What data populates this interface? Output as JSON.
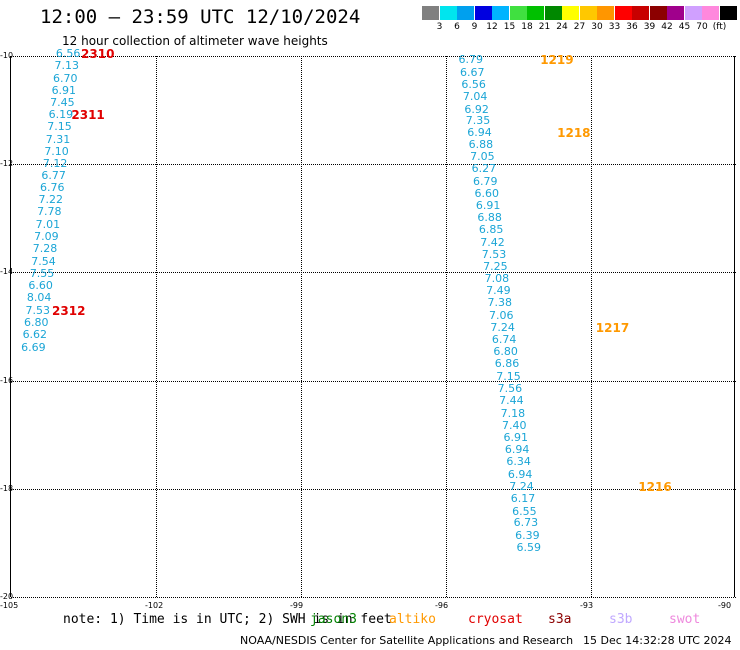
{
  "header": {
    "title": "12:00 — 23:59 UTC 12/10/2024",
    "subtitle": "12 hour collection of altimeter wave heights"
  },
  "colorbar": {
    "swatches": [
      "#808080",
      "#00e5ee",
      "#00a0ee",
      "#0000e0",
      "#00b4ff",
      "#40e040",
      "#00c000",
      "#008800",
      "#ffff00",
      "#ffc800",
      "#ff9600",
      "#ff0000",
      "#c80000",
      "#8c0000",
      "#a0008c",
      "#d0a0ff",
      "#ff88dd",
      "#000000"
    ],
    "labels": [
      "3",
      "6",
      "9",
      "12",
      "15",
      "18",
      "21",
      "24",
      "27",
      "30",
      "33",
      "36",
      "39",
      "42",
      "45",
      "70",
      "(ft)"
    ]
  },
  "axes": {
    "lat_labels": [
      "-10",
      "-12",
      "-14",
      "-16",
      "-18",
      "-20"
    ],
    "lon_labels": [
      "-105",
      "-102",
      "-99",
      "-96",
      "-93",
      "-90"
    ]
  },
  "map_data": {
    "value_color": "#1ba5d6",
    "passes": [
      {
        "id": "2310",
        "mission": "cryosat",
        "color": "#e00000",
        "label_lat": -9.97,
        "label_lon": -103.53,
        "values": [
          {
            "v": "6.56",
            "lon": -104.05,
            "lat": -9.97
          },
          {
            "v": "7.13",
            "lon": -104.08,
            "lat": -10.19
          },
          {
            "v": "6.70",
            "lon": -104.11,
            "lat": -10.42
          },
          {
            "v": "6.91",
            "lon": -104.14,
            "lat": -10.64
          },
          {
            "v": "7.45",
            "lon": -104.17,
            "lat": -10.87
          },
          {
            "v": "6.19",
            "lon": -104.2,
            "lat": -11.09
          },
          {
            "v": "7.15",
            "lon": -104.23,
            "lat": -11.32
          },
          {
            "v": "7.31",
            "lon": -104.26,
            "lat": -11.55
          },
          {
            "v": "7.10",
            "lon": -104.29,
            "lat": -11.77
          },
          {
            "v": "7.12",
            "lon": -104.32,
            "lat": -11.99
          },
          {
            "v": "6.77",
            "lon": -104.35,
            "lat": -12.22
          },
          {
            "v": "6.76",
            "lon": -104.38,
            "lat": -12.44
          },
          {
            "v": "7.22",
            "lon": -104.41,
            "lat": -12.67
          },
          {
            "v": "7.78",
            "lon": -104.44,
            "lat": -12.89
          },
          {
            "v": "7.01",
            "lon": -104.47,
            "lat": -13.12
          },
          {
            "v": "7.09",
            "lon": -104.5,
            "lat": -13.35
          },
          {
            "v": "7.28",
            "lon": -104.53,
            "lat": -13.57
          },
          {
            "v": "7.54",
            "lon": -104.56,
            "lat": -13.8
          },
          {
            "v": "7.55",
            "lon": -104.59,
            "lat": -14.03
          },
          {
            "v": "6.60",
            "lon": -104.62,
            "lat": -14.25
          },
          {
            "v": "8.04",
            "lon": -104.65,
            "lat": -14.48
          },
          {
            "v": "7.53",
            "lon": -104.68,
            "lat": -14.71
          },
          {
            "v": "6.80",
            "lon": -104.71,
            "lat": -14.93
          },
          {
            "v": "6.62",
            "lon": -104.74,
            "lat": -15.16
          },
          {
            "v": "6.69",
            "lon": -104.77,
            "lat": -15.39
          }
        ]
      },
      {
        "id": "2311",
        "mission": "cryosat",
        "color": "#e00000",
        "label_lat": -11.09,
        "label_lon": -103.73,
        "values": []
      },
      {
        "id": "2312",
        "mission": "cryosat",
        "color": "#e00000",
        "label_lat": -14.71,
        "label_lon": -104.13,
        "values": []
      },
      {
        "id": "1219",
        "mission": "altiko",
        "color": "#ff9900",
        "label_lat": -10.08,
        "label_lon": -94.03,
        "values": [
          {
            "v": "6.79",
            "lon": -95.72,
            "lat": -10.08
          },
          {
            "v": "6.67",
            "lon": -95.69,
            "lat": -10.31
          },
          {
            "v": "6.56",
            "lon": -95.66,
            "lat": -10.53
          },
          {
            "v": "7.04",
            "lon": -95.63,
            "lat": -10.76
          },
          {
            "v": "6.92",
            "lon": -95.6,
            "lat": -10.99
          },
          {
            "v": "7.35",
            "lon": -95.57,
            "lat": -11.21
          },
          {
            "v": "6.94",
            "lon": -95.54,
            "lat": -11.42
          },
          {
            "v": "6.88",
            "lon": -95.51,
            "lat": -11.64
          },
          {
            "v": "7.05",
            "lon": -95.48,
            "lat": -11.87
          },
          {
            "v": "6.27",
            "lon": -95.45,
            "lat": -12.09
          },
          {
            "v": "6.79",
            "lon": -95.42,
            "lat": -12.32
          },
          {
            "v": "6.60",
            "lon": -95.39,
            "lat": -12.55
          },
          {
            "v": "6.91",
            "lon": -95.36,
            "lat": -12.77
          },
          {
            "v": "6.88",
            "lon": -95.33,
            "lat": -12.99
          },
          {
            "v": "6.85",
            "lon": -95.3,
            "lat": -13.22
          },
          {
            "v": "7.42",
            "lon": -95.27,
            "lat": -13.45
          },
          {
            "v": "7.53",
            "lon": -95.24,
            "lat": -13.67
          },
          {
            "v": "7.25",
            "lon": -95.21,
            "lat": -13.9
          },
          {
            "v": "7.08",
            "lon": -95.18,
            "lat": -14.12
          },
          {
            "v": "7.49",
            "lon": -95.15,
            "lat": -14.35
          },
          {
            "v": "7.38",
            "lon": -95.12,
            "lat": -14.57
          },
          {
            "v": "7.06",
            "lon": -95.09,
            "lat": -14.8
          },
          {
            "v": "7.24",
            "lon": -95.06,
            "lat": -15.02
          },
          {
            "v": "6.74",
            "lon": -95.03,
            "lat": -15.25
          },
          {
            "v": "6.80",
            "lon": -95.0,
            "lat": -15.48
          },
          {
            "v": "6.86",
            "lon": -94.97,
            "lat": -15.7
          },
          {
            "v": "7.15",
            "lon": -94.94,
            "lat": -15.93
          },
          {
            "v": "7.56",
            "lon": -94.91,
            "lat": -16.15
          },
          {
            "v": "7.44",
            "lon": -94.88,
            "lat": -16.38
          },
          {
            "v": "7.18",
            "lon": -94.85,
            "lat": -16.61
          },
          {
            "v": "7.40",
            "lon": -94.82,
            "lat": -16.83
          },
          {
            "v": "6.91",
            "lon": -94.79,
            "lat": -17.06
          },
          {
            "v": "6.94",
            "lon": -94.76,
            "lat": -17.29
          },
          {
            "v": "6.34",
            "lon": -94.73,
            "lat": -17.51
          },
          {
            "v": "6.94",
            "lon": -94.7,
            "lat": -17.74
          },
          {
            "v": "7.24",
            "lon": -94.67,
            "lat": -17.96
          },
          {
            "v": "6.17",
            "lon": -94.64,
            "lat": -18.19
          },
          {
            "v": "6.55",
            "lon": -94.61,
            "lat": -18.42
          },
          {
            "v": "6.73",
            "lon": -94.58,
            "lat": -18.64
          },
          {
            "v": "6.39",
            "lon": -94.55,
            "lat": -18.87
          },
          {
            "v": "6.59",
            "lon": -94.52,
            "lat": -19.1
          }
        ]
      },
      {
        "id": "1218",
        "mission": "altiko",
        "color": "#ff9900",
        "label_lat": -11.42,
        "label_lon": -93.68,
        "values": []
      },
      {
        "id": "1217",
        "mission": "altiko",
        "color": "#ff9900",
        "label_lat": -15.02,
        "label_lon": -92.88,
        "values": []
      },
      {
        "id": "1216",
        "mission": "altiko",
        "color": "#ff9900",
        "label_lat": -17.96,
        "label_lon": -92.0,
        "values": []
      }
    ]
  },
  "footer": {
    "note": "note:  1) Time is in UTC; 2) SWH is in feet",
    "missions": [
      {
        "name": "jason3",
        "color": "#008000"
      },
      {
        "name": "altiko",
        "color": "#ff9900"
      },
      {
        "name": "cryosat",
        "color": "#e00000"
      },
      {
        "name": "s3a",
        "color": "#8b0000"
      },
      {
        "name": "s3b",
        "color": "#c0a8ff"
      },
      {
        "name": "swot",
        "color": "#ee88dd"
      }
    ],
    "credit": "NOAA/NESDIS Center for Satellite Applications and Research",
    "timestamp": "15 Dec 14:32:28 UTC 2024"
  }
}
